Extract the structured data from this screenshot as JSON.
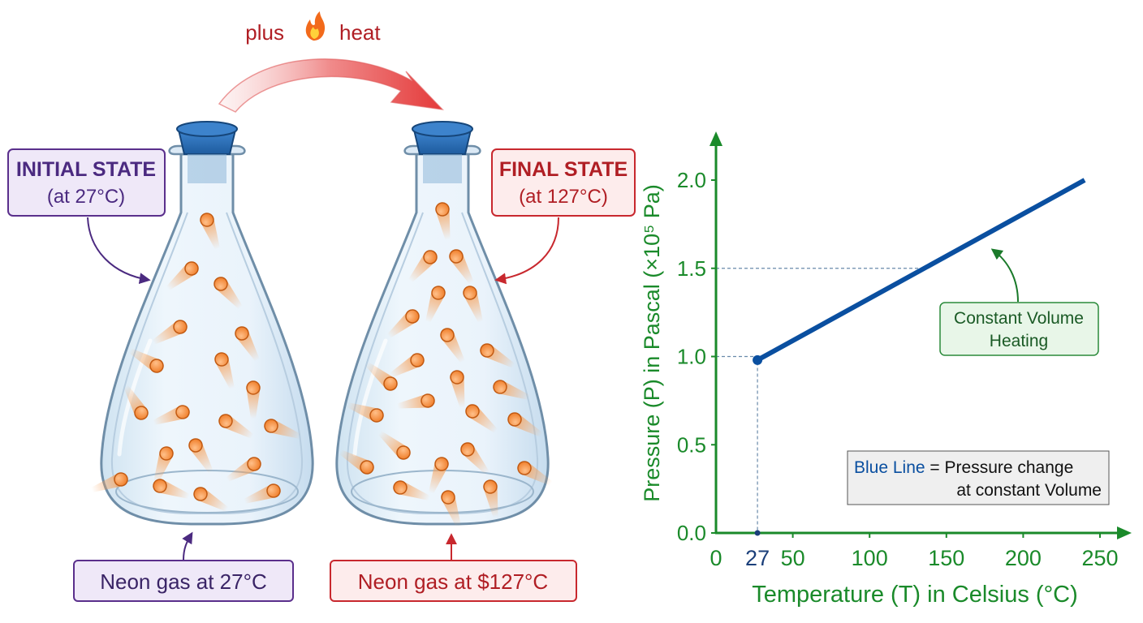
{
  "top_arrow": {
    "text_before": "plus",
    "flame_icon": "fire-icon",
    "text_after": "heat"
  },
  "initial": {
    "title": "INITIAL STATE",
    "subtitle": "(at 27°C)",
    "bottom_label": "Neon gas at 27°C",
    "colors": {
      "stroke": "#5a2f8c",
      "fill": "#efe8f8",
      "title": "#4b2a80"
    }
  },
  "final": {
    "title": "FINAL STATE",
    "subtitle": "(at 127°C)",
    "bottom_label": "Neon gas at $127°C",
    "colors": {
      "stroke": "#c8282e",
      "fill": "#fdecec",
      "title": "#b01e24"
    }
  },
  "chart_data": {
    "type": "line",
    "xlabel": "Temperature (T) in Celsius (°C)",
    "ylabel": "Pressure (P) in Pascal (×10⁵ Pa)",
    "xlim": [
      0,
      250
    ],
    "ylim": [
      0,
      2.0
    ],
    "x_ticks": [
      "0",
      "50",
      "100",
      "150",
      "200",
      "250"
    ],
    "y_ticks": [
      "0.0",
      "0.5",
      "1.0",
      "1.5",
      "2.0"
    ],
    "highlight_x_tick": "27",
    "series": [
      {
        "x": [
          27,
          240
        ],
        "y": [
          0.98,
          2.0
        ],
        "color": "#0a4fa0"
      }
    ],
    "reference_points": [
      {
        "x": 27,
        "y": 1.0
      },
      {
        "x": 132,
        "y": 1.5
      }
    ],
    "annotation": {
      "line1": "Constant Volume",
      "line2": "Heating"
    },
    "legend": {
      "key": "Blue Line",
      "rest": " = Pressure change",
      "line2": "at constant Volume",
      "position": "bottom-right"
    },
    "axis_color": "#1a8a2a"
  }
}
